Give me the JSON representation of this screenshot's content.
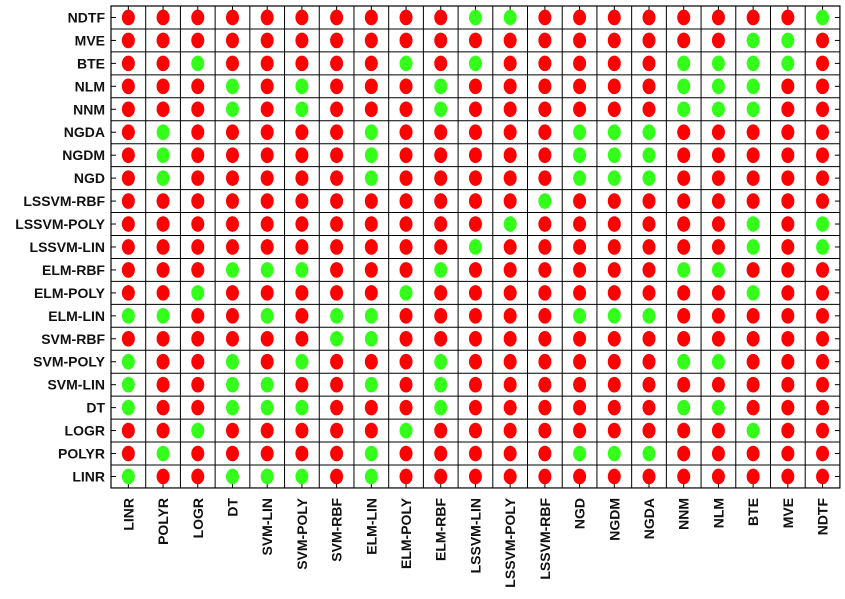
{
  "chart_data": {
    "type": "heatmap",
    "title": "",
    "xlabel": "",
    "ylabel": "",
    "grid": true,
    "columns": [
      "LINR",
      "POLYR",
      "LOGR",
      "DT",
      "SVM-LIN",
      "SVM-POLY",
      "SVM-RBF",
      "ELM-LIN",
      "ELM-POLY",
      "ELM-RBF",
      "LSSVM-LIN",
      "LSSVM-POLY",
      "LSSVM-RBF",
      "NGD",
      "NGDM",
      "NGDA",
      "NNM",
      "NLM",
      "BTE",
      "MVE",
      "NDTF"
    ],
    "rows": [
      "NDTF",
      "MVE",
      "BTE",
      "NLM",
      "NNM",
      "NGDA",
      "NGDM",
      "NGD",
      "LSSVM-RBF",
      "LSSVM-POLY",
      "LSSVM-LIN",
      "ELM-RBF",
      "ELM-POLY",
      "ELM-LIN",
      "SVM-RBF",
      "SVM-POLY",
      "SVM-LIN",
      "DT",
      "LOGR",
      "POLYR",
      "LINR"
    ],
    "values": [
      [
        0,
        0,
        0,
        0,
        0,
        0,
        0,
        0,
        0,
        0,
        1,
        1,
        0,
        0,
        0,
        0,
        0,
        0,
        0,
        0,
        1
      ],
      [
        0,
        0,
        0,
        0,
        0,
        0,
        0,
        0,
        0,
        0,
        0,
        0,
        0,
        0,
        0,
        0,
        0,
        0,
        1,
        1,
        0
      ],
      [
        0,
        0,
        1,
        0,
        0,
        0,
        0,
        0,
        1,
        0,
        1,
        0,
        0,
        0,
        0,
        0,
        1,
        1,
        1,
        1,
        0
      ],
      [
        0,
        0,
        0,
        1,
        0,
        1,
        0,
        0,
        0,
        1,
        0,
        0,
        0,
        0,
        0,
        0,
        1,
        1,
        1,
        0,
        0
      ],
      [
        0,
        0,
        0,
        1,
        0,
        1,
        0,
        0,
        0,
        1,
        0,
        0,
        0,
        0,
        0,
        0,
        1,
        1,
        1,
        0,
        0
      ],
      [
        0,
        1,
        0,
        0,
        0,
        0,
        0,
        1,
        0,
        0,
        0,
        0,
        0,
        1,
        1,
        1,
        0,
        0,
        0,
        0,
        0
      ],
      [
        0,
        1,
        0,
        0,
        0,
        0,
        0,
        1,
        0,
        0,
        0,
        0,
        0,
        1,
        1,
        1,
        0,
        0,
        0,
        0,
        0
      ],
      [
        0,
        1,
        0,
        0,
        0,
        0,
        0,
        1,
        0,
        0,
        0,
        0,
        0,
        1,
        1,
        1,
        0,
        0,
        0,
        0,
        0
      ],
      [
        0,
        0,
        0,
        0,
        0,
        0,
        0,
        0,
        0,
        0,
        0,
        0,
        1,
        0,
        0,
        0,
        0,
        0,
        0,
        0,
        0
      ],
      [
        0,
        0,
        0,
        0,
        0,
        0,
        0,
        0,
        0,
        0,
        0,
        1,
        0,
        0,
        0,
        0,
        0,
        0,
        1,
        0,
        1
      ],
      [
        0,
        0,
        0,
        0,
        0,
        0,
        0,
        0,
        0,
        0,
        1,
        0,
        0,
        0,
        0,
        0,
        0,
        0,
        1,
        0,
        1
      ],
      [
        0,
        0,
        0,
        1,
        1,
        1,
        0,
        0,
        0,
        1,
        0,
        0,
        0,
        0,
        0,
        0,
        1,
        1,
        0,
        0,
        0
      ],
      [
        0,
        0,
        1,
        0,
        0,
        0,
        0,
        0,
        1,
        0,
        0,
        0,
        0,
        0,
        0,
        0,
        0,
        0,
        1,
        0,
        0
      ],
      [
        1,
        1,
        0,
        0,
        1,
        0,
        1,
        1,
        0,
        0,
        0,
        0,
        0,
        1,
        1,
        1,
        0,
        0,
        0,
        0,
        0
      ],
      [
        0,
        0,
        0,
        0,
        0,
        0,
        1,
        1,
        0,
        0,
        0,
        0,
        0,
        0,
        0,
        0,
        0,
        0,
        0,
        0,
        0
      ],
      [
        1,
        0,
        0,
        1,
        0,
        1,
        0,
        0,
        0,
        1,
        0,
        0,
        0,
        0,
        0,
        0,
        1,
        1,
        0,
        0,
        0
      ],
      [
        1,
        0,
        0,
        1,
        1,
        0,
        0,
        1,
        0,
        1,
        0,
        0,
        0,
        0,
        0,
        0,
        0,
        0,
        0,
        0,
        0
      ],
      [
        1,
        0,
        0,
        1,
        1,
        1,
        0,
        0,
        0,
        1,
        0,
        0,
        0,
        0,
        0,
        0,
        1,
        1,
        0,
        0,
        0
      ],
      [
        0,
        0,
        1,
        0,
        0,
        0,
        0,
        0,
        1,
        0,
        0,
        0,
        0,
        0,
        0,
        0,
        0,
        0,
        1,
        0,
        0
      ],
      [
        0,
        1,
        0,
        0,
        0,
        0,
        0,
        1,
        0,
        0,
        0,
        0,
        0,
        1,
        1,
        1,
        0,
        0,
        0,
        0,
        0
      ],
      [
        1,
        0,
        0,
        1,
        1,
        1,
        0,
        1,
        0,
        0,
        0,
        0,
        0,
        0,
        0,
        0,
        0,
        0,
        0,
        0,
        0
      ]
    ],
    "colors": {
      "0": "#ff0000",
      "1": "#33ff1a"
    }
  }
}
